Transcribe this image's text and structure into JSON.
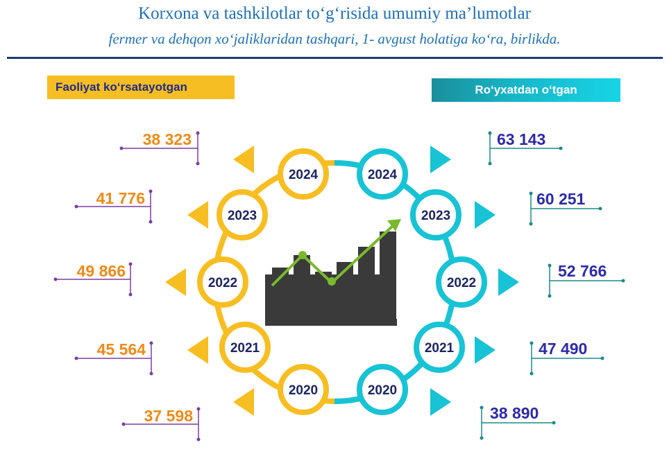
{
  "header": {
    "title": "Korxona va tashkilotlar to‘g‘risida umumiy ma’lumotlar",
    "subtitle": "fermer va dehqon xo‘jaliklaridan tashqari, 1- avgust holatiga ko‘ra, birlikda."
  },
  "legend": {
    "active_label": "Faoliyat ko‘rsatayotgan",
    "registered_label": "Ro‘yxatdan o‘tgan"
  },
  "colors": {
    "active": "#f7be23",
    "registered": "#17c3d4",
    "active_value": "#f08a16",
    "registered_value": "#2d2aa8",
    "title": "#1f6fb5"
  },
  "active": [
    {
      "year": "2024",
      "value": "38 323"
    },
    {
      "year": "2023",
      "value": "41 776"
    },
    {
      "year": "2022",
      "value": "49 866"
    },
    {
      "year": "2021",
      "value": "45 564"
    },
    {
      "year": "2020",
      "value": "37 598"
    }
  ],
  "registered": [
    {
      "year": "2024",
      "value": "63 143"
    },
    {
      "year": "2023",
      "value": "60 251"
    },
    {
      "year": "2022",
      "value": "52 766"
    },
    {
      "year": "2021",
      "value": "47 490"
    },
    {
      "year": "2020",
      "value": "38 890"
    }
  ],
  "center_icon": "growth-bar-chart-icon"
}
